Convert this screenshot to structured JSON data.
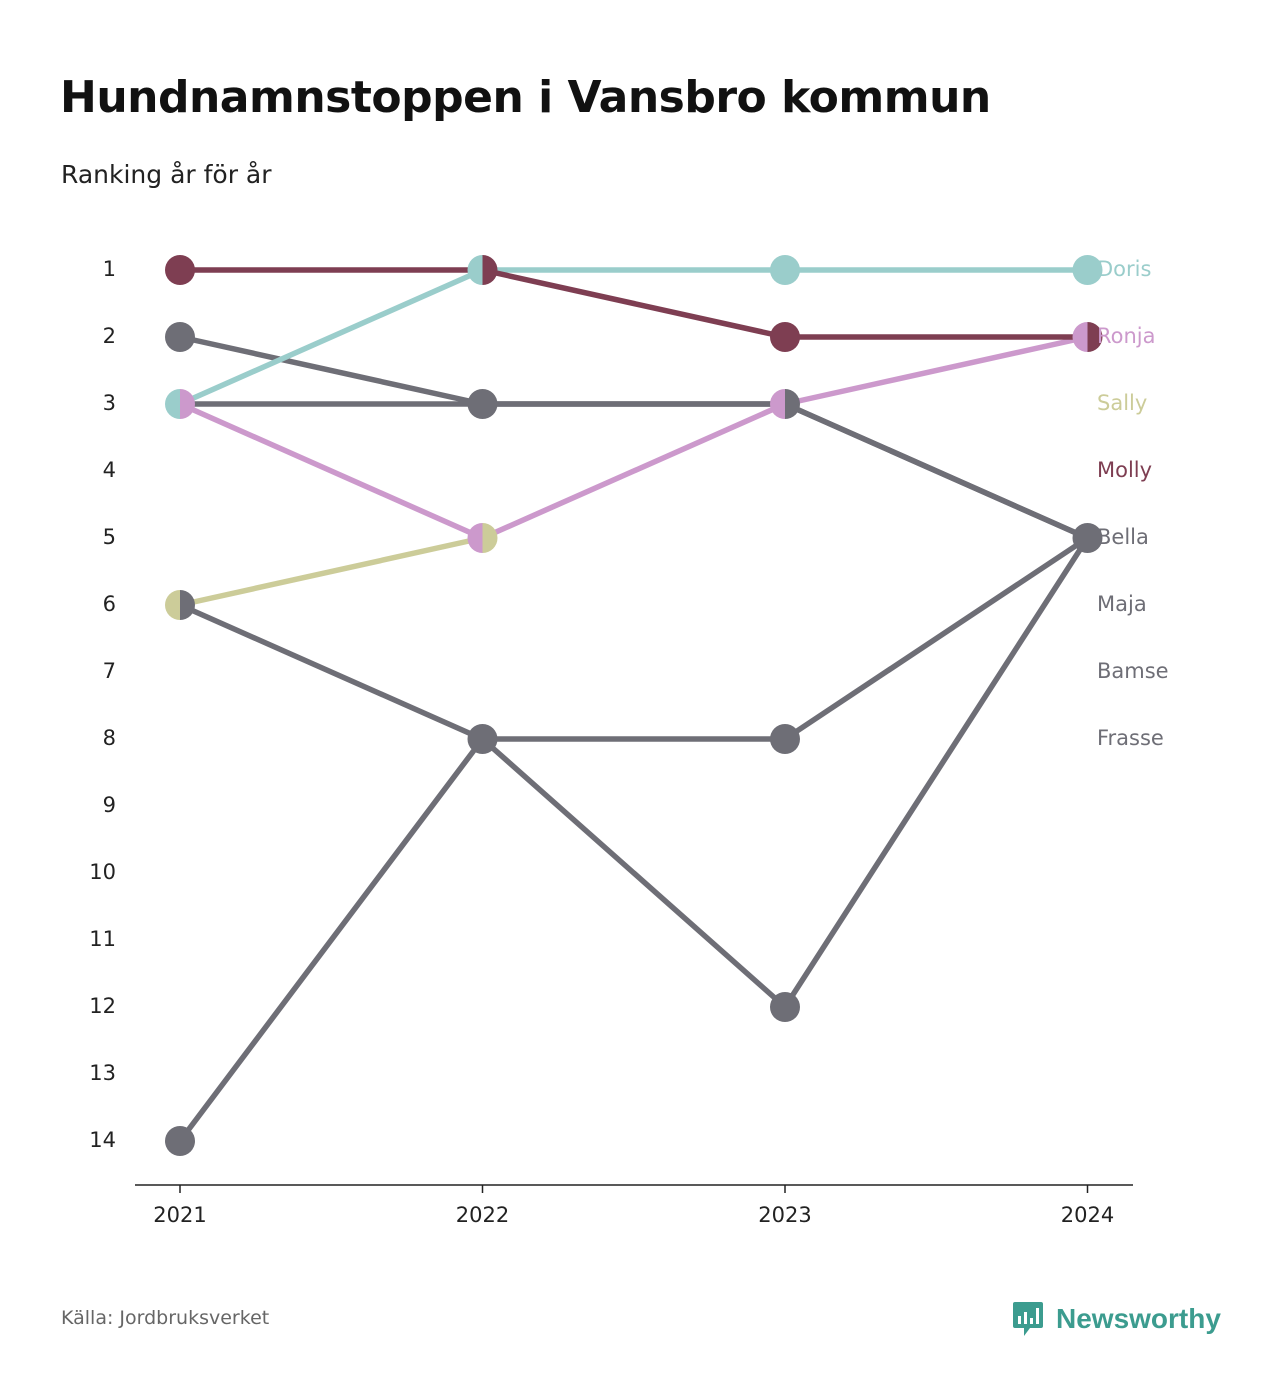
{
  "title": "Hundnamnstoppen i Vansbro kommun",
  "subtitle": "Ranking år för år",
  "source": "Källa: Jordbruksverket",
  "brand": {
    "name": "Newsworthy",
    "icon": "newsworthy-logo-icon",
    "color": "#3c9c8f"
  },
  "chart_data": {
    "type": "line",
    "x": [
      "2021",
      "2022",
      "2023",
      "2024"
    ],
    "ylim": [
      1,
      14
    ],
    "y_reversed": true,
    "yticks": [
      "1",
      "2",
      "3",
      "4",
      "5",
      "6",
      "7",
      "8",
      "9",
      "10",
      "11",
      "12",
      "13",
      "14"
    ],
    "grid": false,
    "legend": "right end labels",
    "series": [
      {
        "name": "Doris",
        "color": "#9acdcb",
        "values": [
          3,
          1,
          1,
          1
        ]
      },
      {
        "name": "Ronja",
        "color": "#cc99cc",
        "values": [
          3,
          5,
          3,
          2
        ]
      },
      {
        "name": "Sally",
        "color": "#cccc99",
        "values": [
          6,
          5,
          null,
          null
        ]
      },
      {
        "name": "Molly",
        "color": "#7e3e52",
        "values": [
          1,
          1,
          2,
          2
        ]
      },
      {
        "name": "Bella",
        "color": "#6e6e76",
        "values": [
          3,
          3,
          3,
          5
        ]
      },
      {
        "name": "Maja",
        "color": "#6e6e76",
        "values": [
          2,
          3,
          3,
          5
        ]
      },
      {
        "name": "Bamse",
        "color": "#6e6e76",
        "values": [
          6,
          8,
          8,
          5
        ]
      },
      {
        "name": "Frasse",
        "color": "#6e6e76",
        "values": [
          14,
          8,
          12,
          5
        ]
      }
    ]
  }
}
